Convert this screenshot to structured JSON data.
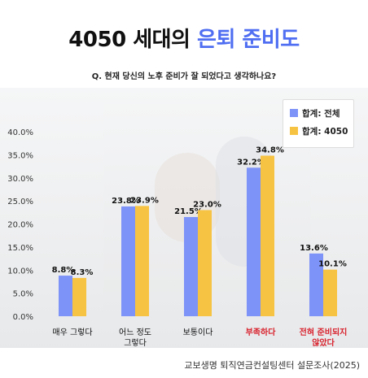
{
  "title": {
    "part1": "4050 세대의 ",
    "part2": "은퇴 준비도"
  },
  "question": "Q. 현재 당신의 노후 준비가 잘 되었다고 생각하나요?",
  "source": "교보생명 퇴직연금컨설팅센터 설문조사(2025)",
  "colors": {
    "series1": "#7e93f7",
    "series2": "#f7c342",
    "highlight_label": "#d9232e",
    "title_accent": "#4f6ef2"
  },
  "chart_data": {
    "type": "bar",
    "categories": [
      {
        "lines": [
          "매우 그렇다"
        ],
        "highlight": false
      },
      {
        "lines": [
          "어느 정도",
          "그렇다"
        ],
        "highlight": false
      },
      {
        "lines": [
          "보통이다"
        ],
        "highlight": false
      },
      {
        "lines": [
          "부족하다"
        ],
        "highlight": true
      },
      {
        "lines": [
          "전혀 준비되지",
          "않았다"
        ],
        "highlight": true
      }
    ],
    "series": [
      {
        "name": "합계: 전체",
        "values": [
          8.8,
          23.8,
          21.5,
          32.2,
          13.6
        ],
        "labels": [
          "8.8%",
          "23.8%",
          "21.5%",
          "32.2%",
          "13.6%"
        ]
      },
      {
        "name": "합계: 4050",
        "values": [
          8.3,
          23.9,
          23.0,
          34.8,
          10.1
        ],
        "labels": [
          "8.3%",
          "23.9%",
          "23.0%",
          "34.8%",
          "10.1%"
        ]
      }
    ],
    "yticks": [
      "0.0%",
      "5.0%",
      "10.0%",
      "15.0%",
      "20.0%",
      "25.0%",
      "30.0%",
      "35.0%",
      "40.0%"
    ],
    "ylim": [
      0,
      40
    ],
    "grid": false,
    "legend": "top-right"
  }
}
